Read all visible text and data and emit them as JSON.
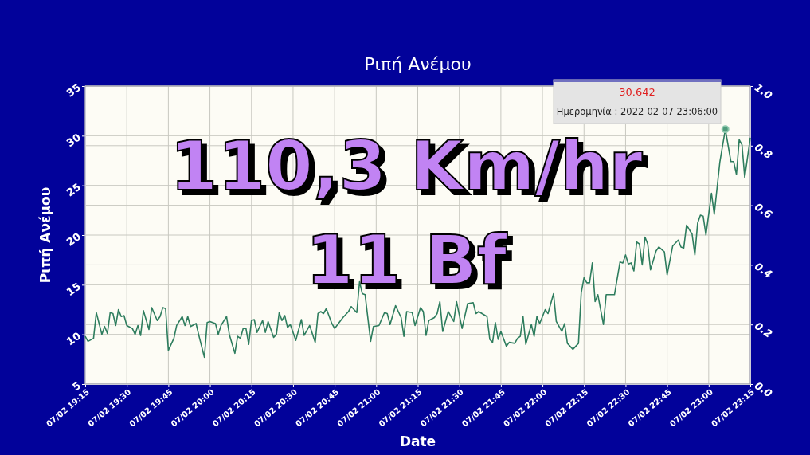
{
  "chart_data": {
    "type": "line",
    "title": "Ριπή Ανέμου",
    "xlabel": "Date",
    "ylabel": "Ριπή Ανέμου",
    "x": [
      "2022-02-07T19:15",
      "2022-02-07T19:16",
      "2022-02-07T19:18",
      "2022-02-07T19:19",
      "2022-02-07T19:21",
      "2022-02-07T19:22",
      "2022-02-07T19:23",
      "2022-02-07T19:24",
      "2022-02-07T19:25",
      "2022-02-07T19:26",
      "2022-02-07T19:27",
      "2022-02-07T19:28",
      "2022-02-07T19:29",
      "2022-02-07T19:30",
      "2022-02-07T19:32",
      "2022-02-07T19:33",
      "2022-02-07T19:34",
      "2022-02-07T19:35",
      "2022-02-07T19:36",
      "2022-02-07T19:38",
      "2022-02-07T19:39",
      "2022-02-07T19:41",
      "2022-02-07T19:42",
      "2022-02-07T19:43",
      "2022-02-07T19:44",
      "2022-02-07T19:45",
      "2022-02-07T19:47",
      "2022-02-07T19:48",
      "2022-02-07T19:50",
      "2022-02-07T19:51",
      "2022-02-07T19:52",
      "2022-02-07T19:53",
      "2022-02-07T19:55",
      "2022-02-07T19:56",
      "2022-02-07T19:58",
      "2022-02-07T19:59",
      "2022-02-07T20:00",
      "2022-02-07T20:02",
      "2022-02-07T20:03",
      "2022-02-07T20:04",
      "2022-02-07T20:06",
      "2022-02-07T20:07",
      "2022-02-07T20:09",
      "2022-02-07T20:10",
      "2022-02-07T20:11",
      "2022-02-07T20:12",
      "2022-02-07T20:13",
      "2022-02-07T20:14",
      "2022-02-07T20:15",
      "2022-02-07T20:16",
      "2022-02-07T20:17",
      "2022-02-07T20:19",
      "2022-02-07T20:20",
      "2022-02-07T20:21",
      "2022-02-07T20:23",
      "2022-02-07T20:24",
      "2022-02-07T20:25",
      "2022-02-07T20:26",
      "2022-02-07T20:27",
      "2022-02-07T20:28",
      "2022-02-07T20:29",
      "2022-02-07T20:31",
      "2022-02-07T20:33",
      "2022-02-07T20:34",
      "2022-02-07T20:36",
      "2022-02-07T20:38",
      "2022-02-07T20:39",
      "2022-02-07T20:40",
      "2022-02-07T20:41",
      "2022-02-07T20:42",
      "2022-02-07T20:44",
      "2022-02-07T20:45",
      "2022-02-07T20:48",
      "2022-02-07T20:50",
      "2022-02-07T20:51",
      "2022-02-07T20:53",
      "2022-02-07T20:54",
      "2022-02-07T20:55",
      "2022-02-07T20:56",
      "2022-02-07T20:58",
      "2022-02-07T20:59",
      "2022-02-07T21:01",
      "2022-02-07T21:03",
      "2022-02-07T21:04",
      "2022-02-07T21:05",
      "2022-02-07T21:07",
      "2022-02-07T21:09",
      "2022-02-07T21:10",
      "2022-02-07T21:11",
      "2022-02-07T21:13",
      "2022-02-07T21:14",
      "2022-02-07T21:16",
      "2022-02-07T21:17",
      "2022-02-07T21:18",
      "2022-02-07T21:19",
      "2022-02-07T21:21",
      "2022-02-07T21:22",
      "2022-02-07T21:23",
      "2022-02-07T21:24",
      "2022-02-07T21:26",
      "2022-02-07T21:28",
      "2022-02-07T21:29",
      "2022-02-07T21:31",
      "2022-02-07T21:33",
      "2022-02-07T21:35",
      "2022-02-07T21:36",
      "2022-02-07T21:37",
      "2022-02-07T21:40",
      "2022-02-07T21:41",
      "2022-02-07T21:42",
      "2022-02-07T21:43",
      "2022-02-07T21:44",
      "2022-02-07T21:45",
      "2022-02-07T21:47",
      "2022-02-07T21:48",
      "2022-02-07T21:50",
      "2022-02-07T21:51",
      "2022-02-07T21:52",
      "2022-02-07T21:53",
      "2022-02-07T21:54",
      "2022-02-07T21:56",
      "2022-02-07T21:57",
      "2022-02-07T21:58",
      "2022-02-07T21:59",
      "2022-02-07T22:01",
      "2022-02-07T22:02",
      "2022-02-07T22:04",
      "2022-02-07T22:05",
      "2022-02-07T22:07",
      "2022-02-07T22:08",
      "2022-02-07T22:09",
      "2022-02-07T22:11",
      "2022-02-07T22:13",
      "2022-02-07T22:14",
      "2022-02-07T22:15",
      "2022-02-07T22:16",
      "2022-02-07T22:17",
      "2022-02-07T22:18",
      "2022-02-07T22:19",
      "2022-02-07T22:20",
      "2022-02-07T22:22",
      "2022-02-07T22:23",
      "2022-02-07T22:26",
      "2022-02-07T22:28",
      "2022-02-07T22:29",
      "2022-02-07T22:30",
      "2022-02-07T22:31",
      "2022-02-07T22:32",
      "2022-02-07T22:33",
      "2022-02-07T22:34",
      "2022-02-07T22:35",
      "2022-02-07T22:36",
      "2022-02-07T22:37",
      "2022-02-07T22:38",
      "2022-02-07T22:39",
      "2022-02-07T22:41",
      "2022-02-07T22:42",
      "2022-02-07T22:44",
      "2022-02-07T22:45",
      "2022-02-07T22:47",
      "2022-02-07T22:49",
      "2022-02-07T22:50",
      "2022-02-07T22:51",
      "2022-02-07T22:52",
      "2022-02-07T22:54",
      "2022-02-07T22:55",
      "2022-02-07T22:56",
      "2022-02-07T22:57",
      "2022-02-07T22:58",
      "2022-02-07T22:59",
      "2022-02-07T23:01",
      "2022-02-07T23:02",
      "2022-02-07T23:04",
      "2022-02-07T23:05",
      "2022-02-07T23:06",
      "2022-02-07T23:08",
      "2022-02-07T23:09",
      "2022-02-07T23:10",
      "2022-02-07T23:11",
      "2022-02-07T23:12",
      "2022-02-07T23:13",
      "2022-02-07T23:15"
    ],
    "series": [
      {
        "color": "#2e7d5e",
        "values": [
          9.8,
          9.3,
          9.6,
          12.2,
          10.0,
          10.8,
          10.1,
          12.2,
          12.1,
          10.9,
          12.5,
          11.8,
          11.9,
          10.9,
          10.6,
          10.0,
          10.9,
          9.9,
          12.4,
          10.5,
          12.7,
          11.4,
          11.8,
          12.7,
          12.6,
          8.4,
          9.6,
          10.9,
          11.8,
          10.9,
          11.8,
          10.8,
          11.1,
          9.9,
          7.7,
          11.2,
          11.3,
          11.1,
          10.0,
          10.9,
          11.8,
          10.0,
          8.1,
          9.8,
          9.6,
          10.6,
          10.6,
          9.0,
          11.4,
          11.5,
          10.2,
          11.4,
          10.2,
          11.3,
          9.7,
          10.0,
          12.2,
          11.4,
          11.9,
          10.7,
          11.0,
          9.4,
          11.5,
          9.9,
          10.9,
          9.2,
          12.1,
          12.3,
          12.1,
          12.6,
          11.1,
          10.6,
          11.7,
          12.3,
          12.8,
          12.2,
          15.3,
          14.1,
          14.0,
          9.3,
          10.8,
          10.9,
          12.2,
          12.1,
          11.0,
          12.9,
          11.7,
          9.8,
          12.3,
          12.2,
          10.9,
          12.7,
          12.3,
          9.9,
          11.4,
          11.7,
          12.1,
          13.3,
          10.3,
          12.3,
          11.3,
          13.3,
          10.6,
          13.1,
          13.2,
          12.1,
          12.3,
          11.8,
          9.5,
          9.2,
          11.2,
          9.5,
          10.3,
          8.8,
          9.2,
          9.1,
          9.6,
          9.8,
          11.8,
          9.0,
          11.0,
          9.8,
          11.8,
          11.1,
          12.5,
          12.1,
          14.1,
          11.3,
          10.3,
          11.1,
          9.1,
          8.5,
          9.1,
          14.2,
          15.7,
          15.2,
          15.2,
          17.2,
          13.3,
          14.0,
          11.0,
          14.0,
          14.0,
          17.3,
          17.2,
          18.0,
          17.1,
          17.2,
          16.4,
          19.3,
          19.1,
          17.0,
          19.8,
          19.1,
          16.5,
          18.4,
          18.8,
          18.3,
          16.0,
          18.9,
          19.5,
          18.8,
          18.7,
          21.0,
          20.1,
          18.0,
          21.2,
          22.0,
          21.9,
          20.0,
          24.2,
          22.1,
          27.3,
          29.0,
          30.642,
          27.4,
          27.4,
          26.1,
          29.6,
          29.1,
          25.8,
          29.8
        ]
      }
    ],
    "xlim": [
      "2022-02-07T19:15",
      "2022-02-07T23:15"
    ],
    "xticks": [
      {
        "value": "2022-02-07T19:15",
        "label": "07/02 19:15"
      },
      {
        "value": "2022-02-07T19:30",
        "label": "07/02 19:30"
      },
      {
        "value": "2022-02-07T19:45",
        "label": "07/02 19:45"
      },
      {
        "value": "2022-02-07T20:00",
        "label": "07/02 20:00"
      },
      {
        "value": "2022-02-07T20:15",
        "label": "07/02 20:15"
      },
      {
        "value": "2022-02-07T20:30",
        "label": "07/02 20:30"
      },
      {
        "value": "2022-02-07T20:45",
        "label": "07/02 20:45"
      },
      {
        "value": "2022-02-07T21:00",
        "label": "07/02 21:00"
      },
      {
        "value": "2022-02-07T21:15",
        "label": "07/02 21:15"
      },
      {
        "value": "2022-02-07T21:30",
        "label": "07/02 21:30"
      },
      {
        "value": "2022-02-07T21:45",
        "label": "07/02 21:45"
      },
      {
        "value": "2022-02-07T22:00",
        "label": "07/02 22:00"
      },
      {
        "value": "2022-02-07T22:15",
        "label": "07/02 22:15"
      },
      {
        "value": "2022-02-07T22:30",
        "label": "07/02 22:30"
      },
      {
        "value": "2022-02-07T22:45",
        "label": "07/02 22:45"
      },
      {
        "value": "2022-02-07T23:00",
        "label": "07/02 23:00"
      },
      {
        "value": "2022-02-07T23:15",
        "label": "07/02 23:15"
      }
    ],
    "ylim": [
      5,
      35
    ],
    "yticks": [
      5,
      10,
      15,
      20,
      25,
      30,
      35
    ],
    "y2lim": [
      0,
      1
    ],
    "y2ticks": [
      {
        "value": 0,
        "label": "0.0"
      },
      {
        "value": 0.2,
        "label": "0.2"
      },
      {
        "value": 0.4,
        "label": "0.4"
      },
      {
        "value": 0.6,
        "label": "0.6"
      },
      {
        "value": 0.8,
        "label": "0.8"
      },
      {
        "value": 1,
        "label": "1.0"
      }
    ],
    "grid": true,
    "marker": "none",
    "line_style": "solid",
    "annotations": [
      "110,3 Km/hr",
      "11 Bf",
      "30.642",
      "Ημερομηνία : 2022-02-07 23:06:00"
    ]
  }
}
